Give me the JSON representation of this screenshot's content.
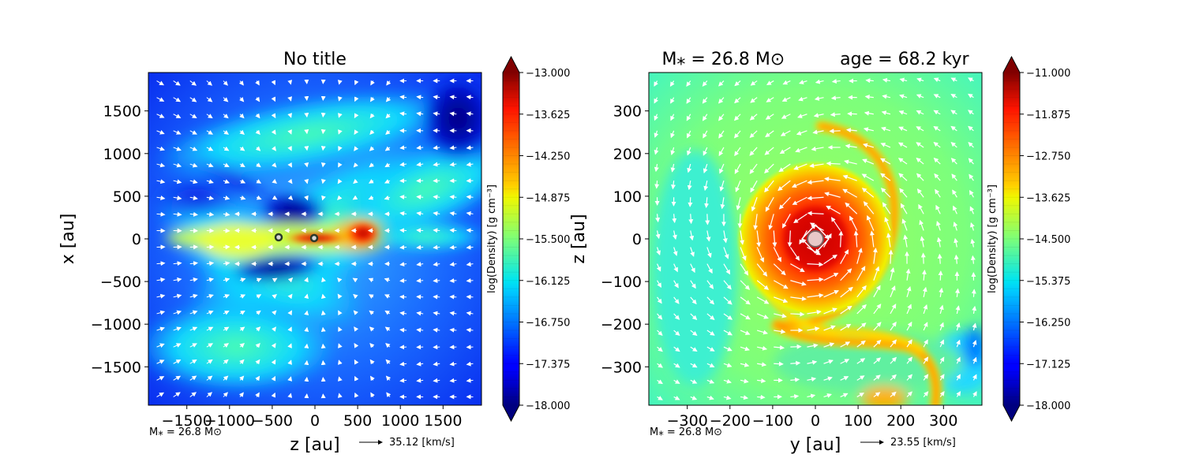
{
  "chart_data": [
    {
      "type": "heatmap",
      "title": "No title",
      "xlabel": "z [au]",
      "ylabel": "x [au]",
      "xlim": [
        -1950,
        1950
      ],
      "ylim": [
        -1950,
        1950
      ],
      "xticks": [
        -1500,
        -1000,
        -500,
        0,
        500,
        1000,
        1500
      ],
      "yticks": [
        -1500,
        -1000,
        -500,
        0,
        500,
        1000,
        1500
      ],
      "xtick_labels": [
        "−1500",
        "−1000",
        "−500",
        "0",
        "500",
        "1000",
        "1500"
      ],
      "ytick_labels": [
        "−1500",
        "−1000",
        "−500",
        "0",
        "500",
        "1000",
        "1500"
      ],
      "colorbar": {
        "label": "log(Density) [g cm⁻³]",
        "vmin": -18.0,
        "vmax": -13.0,
        "ticks": [
          -13.0,
          -13.625,
          -14.25,
          -14.875,
          -15.5,
          -16.125,
          -16.75,
          -17.375,
          -18.0
        ],
        "tick_labels": [
          "−13.000",
          "−13.625",
          "−14.250",
          "−14.875",
          "−15.500",
          "−16.125",
          "−16.750",
          "−17.375",
          "−18.000"
        ],
        "colormap": "jet"
      },
      "footer_note": "M⁎ = 26.8 M⊙",
      "velocity_key": "35.12 [km/s]",
      "sink_particles": [
        {
          "x": -420,
          "y": 20
        },
        {
          "x": -10,
          "y": 5
        }
      ],
      "field_features": [
        {
          "kind": "ridge",
          "x1": -1500,
          "y1": 0,
          "x2": 900,
          "y2": 0,
          "level": -15.0
        },
        {
          "kind": "ridge",
          "x1": -900,
          "y1": 700,
          "x2": 900,
          "y2": -700,
          "level": -16.0
        },
        {
          "kind": "blob",
          "x": -50,
          "y": 0,
          "level": -13.1
        },
        {
          "kind": "blob",
          "x": 550,
          "y": 0,
          "level": -13.8
        },
        {
          "kind": "void",
          "x": -200,
          "y": 330,
          "level": -17.9
        },
        {
          "kind": "void",
          "x": 1750,
          "y": 1450,
          "level": -18.0
        }
      ]
    },
    {
      "type": "heatmap",
      "title": "M⁎ = 26.8 M⊙          age = 68.2 kyr",
      "xlabel": "y [au]",
      "ylabel": "z [au]",
      "xlim": [
        -390,
        390
      ],
      "ylim": [
        -390,
        390
      ],
      "xticks": [
        -300,
        -200,
        -100,
        0,
        100,
        200,
        300
      ],
      "yticks": [
        -300,
        -200,
        -100,
        0,
        100,
        200,
        300
      ],
      "xtick_labels": [
        "−300",
        "−200",
        "−100",
        "0",
        "100",
        "200",
        "300"
      ],
      "ytick_labels": [
        "−300",
        "−200",
        "−100",
        "0",
        "100",
        "200",
        "300"
      ],
      "colorbar": {
        "label": "log(Density) [g cm⁻³]",
        "vmin": -18.0,
        "vmax": -11.0,
        "ticks": [
          -11.0,
          -11.875,
          -12.75,
          -13.625,
          -14.5,
          -15.375,
          -16.25,
          -17.125,
          -18.0
        ],
        "tick_labels": [
          "−11.000",
          "−11.875",
          "−12.750",
          "−13.625",
          "−14.500",
          "−15.375",
          "−16.250",
          "−17.125",
          "−18.000"
        ],
        "colormap": "jet"
      },
      "footer_note": "M⁎ = 26.8 M⊙",
      "velocity_key": "23.55 [km/s]",
      "sink_particles": [
        {
          "x": 0,
          "y": 0
        }
      ],
      "field_features": [
        {
          "kind": "disk",
          "x": 0,
          "y": 0,
          "radius": 180,
          "level": -11.5
        },
        {
          "kind": "spiral-arm",
          "from": [
            60,
            260
          ],
          "to": [
            290,
            -370
          ],
          "level": -13.0
        },
        {
          "kind": "blob",
          "x": 150,
          "y": -380,
          "level": -12.8
        }
      ]
    }
  ]
}
